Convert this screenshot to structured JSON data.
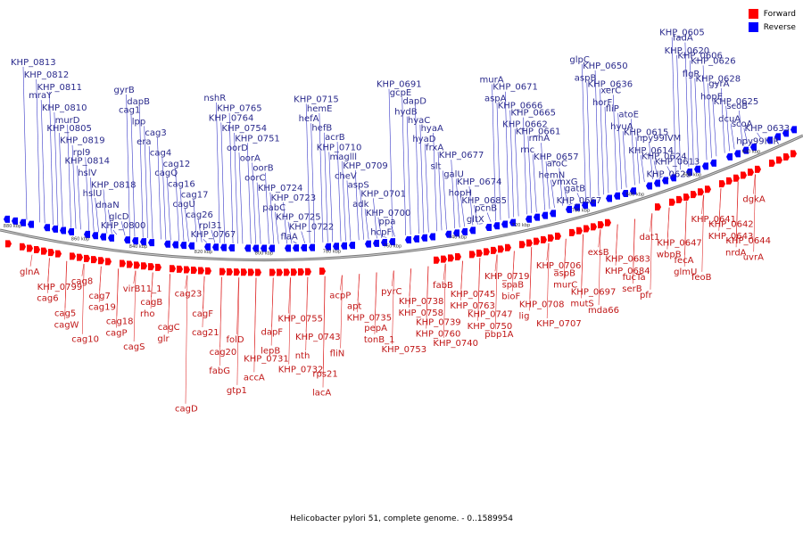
{
  "caption": "Helicobacter pylori 51, complete genome. - 0..1589954",
  "legend": {
    "forward": {
      "label": "Forward",
      "color": "#ff0000"
    },
    "reverse": {
      "label": "Reverse",
      "color": "#0000ff"
    }
  },
  "colors": {
    "reverse_text": "#2a2a8c",
    "forward_text": "#c01616",
    "backbone": "#888888"
  },
  "axis_ticks": [
    "840 kbp",
    "820 kbp",
    "800 kbp",
    "780 kbp",
    "760 kbp",
    "740 kbp",
    "720 kbp",
    "700 kbp",
    "680 kbp",
    "660 kbp",
    "640 kbp",
    "860 kbp",
    "880 kbp"
  ],
  "reverse_labels": [
    "KHP_0813",
    "KHP_0812",
    "KHP_0811",
    "mraY",
    "KHP_0810",
    "murD",
    "KHP_0805",
    "KHP_0819",
    "rpl9",
    "KHP_0814",
    "hslV",
    "KHP_0818",
    "hslU",
    "dnaN",
    "glcD",
    "KHP_0800",
    "gyrB",
    "dapB",
    "cag1",
    "lpp",
    "cag3",
    "era",
    "cag4",
    "cag12",
    "cagQ",
    "cag16",
    "cag17",
    "cagU",
    "cag26",
    "rpl31",
    "KHP_0767",
    "nshR",
    "KHP_0765",
    "KHP_0764",
    "KHP_0754",
    "KHP_0751",
    "oorD",
    "oorA",
    "oorB",
    "oorC",
    "KHP_0724",
    "KHP_0723",
    "pabC",
    "KHP_0725",
    "KHP_0722",
    "flaA",
    "KHP_0715",
    "hemE",
    "hefA",
    "hefB",
    "acrB",
    "KHP_0710",
    "maglll",
    "KHP_0709",
    "cheV",
    "aspS",
    "KHP_0701",
    "adk",
    "KHP_0700",
    "ppa",
    "hcpF",
    "KHP_0691",
    "gcpE",
    "dapD",
    "hydB",
    "hyaC",
    "hyaA",
    "hyaD",
    "frxA",
    "KHP_0677",
    "slt",
    "galU",
    "KHP_0674",
    "hopH",
    "KHP_0685",
    "pcnB",
    "gltX",
    "murA",
    "KHP_0671",
    "aspA",
    "KHP_0666",
    "KHP_0665",
    "KHP_0662",
    "KHP_0661",
    "rnhA",
    "rnc",
    "KHP_0657",
    "aroC",
    "hemN",
    "ymxG",
    "gatB",
    "KHP_0667",
    "glpC",
    "KHP_0650",
    "aspB",
    "KHP_0636",
    "xerC",
    "horF",
    "fliP",
    "atoE",
    "hyuA",
    "KHP_0615",
    "hpy99IVM",
    "KHP_0614",
    "KHP_0624",
    "KHP_0613",
    "KHP_0623",
    "KHP_0605",
    "fadA",
    "KHP_0620",
    "KHP_0606",
    "KHP_0626",
    "flgR",
    "KHP_0628",
    "gyrA",
    "hopE",
    "KHP_0625",
    "scoB",
    "dcuA",
    "scoA",
    "KHP_0633",
    "hpy99IVR"
  ],
  "forward_labels": [
    "glnA",
    "KHP_0799",
    "cag6",
    "cag5",
    "cagW",
    "cag10",
    "cag8",
    "cag7",
    "cag19",
    "cag18",
    "cagP",
    "cagS",
    "virB11_1",
    "cagB",
    "rho",
    "cagC",
    "glr",
    "cagD",
    "cag23",
    "cagF",
    "cag21",
    "cag20",
    "fabG",
    "gtp1",
    "folD",
    "KHP_0731",
    "accA",
    "dapF",
    "lepB",
    "KHP_0732",
    "KHP_0755",
    "KHP_0743",
    "nth",
    "rps21",
    "lacA",
    "fliN",
    "acpP",
    "apt",
    "KHP_0735",
    "pepA",
    "tonB_1",
    "KHP_0753",
    "pyrC",
    "KHP_0738",
    "KHP_0758",
    "KHP_0739",
    "KHP_0760",
    "KHP_0740",
    "fabB",
    "KHP_0745",
    "KHP_0763",
    "KHP_0747",
    "KHP_0750",
    "pbp1A",
    "KHP_0719",
    "spaB",
    "bioF",
    "KHP_0708",
    "lig",
    "KHP_0707",
    "KHP_0706",
    "aspB",
    "murC",
    "KHP_0697",
    "mutS",
    "mda66",
    "exsB",
    "KHP_0683",
    "KHP_0684",
    "fucTa",
    "serB",
    "pfr",
    "dat1",
    "KHP_0647",
    "wbpB",
    "fecA",
    "glmU",
    "feoB",
    "KHP_0641",
    "KHP_0642",
    "KHP_0643",
    "KHP_0644",
    "nrdA",
    "uvrA",
    "dgkA"
  ]
}
